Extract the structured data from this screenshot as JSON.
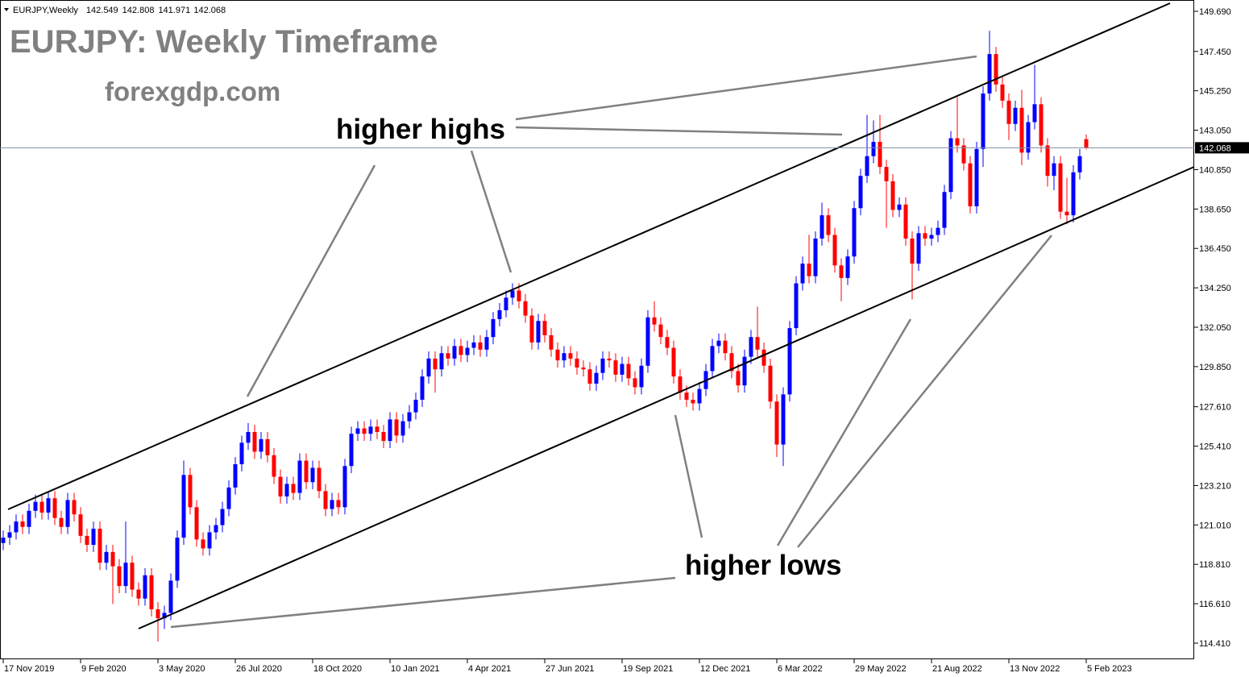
{
  "chart_data": {
    "type": "candlestick",
    "symbol": "EURJPY,Weekly",
    "title": "EURJPY: Weekly Timeframe",
    "subtitle": "forexgdp.com",
    "annotations": [
      "higher highs",
      "higher lows"
    ],
    "up_color": "#0000ff",
    "down_color": "#ff0000",
    "grid": false,
    "ylim": [
      113.51,
      150.32
    ],
    "yticks": [
      {
        "value": 149.69,
        "label": "149.690"
      },
      {
        "value": 147.45,
        "label": "147.450"
      },
      {
        "value": 145.25,
        "label": "145.250"
      },
      {
        "value": 143.05,
        "label": "143.050"
      },
      {
        "value": 140.85,
        "label": "140.850"
      },
      {
        "value": 138.65,
        "label": "138.650"
      },
      {
        "value": 136.45,
        "label": "136.450"
      },
      {
        "value": 134.25,
        "label": "134.250"
      },
      {
        "value": 132.05,
        "label": "132.050"
      },
      {
        "value": 129.85,
        "label": "129.850"
      },
      {
        "value": 127.61,
        "label": "127.610"
      },
      {
        "value": 125.41,
        "label": "125.410"
      },
      {
        "value": 123.21,
        "label": "123.210"
      },
      {
        "value": 121.01,
        "label": "121.010"
      },
      {
        "value": 118.81,
        "label": "118.810"
      },
      {
        "value": 116.61,
        "label": "116.610"
      },
      {
        "value": 114.41,
        "label": "114.410"
      }
    ],
    "categories": [
      "17 Nov 2019",
      null,
      null,
      null,
      null,
      null,
      null,
      null,
      null,
      null,
      null,
      null,
      "9 Feb 2020",
      null,
      null,
      null,
      null,
      null,
      null,
      null,
      null,
      null,
      null,
      null,
      "3 May 2020",
      null,
      null,
      null,
      null,
      null,
      null,
      null,
      null,
      null,
      null,
      null,
      "26 Jul 2020",
      null,
      null,
      null,
      null,
      null,
      null,
      null,
      null,
      null,
      null,
      null,
      "18 Oct 2020",
      null,
      null,
      null,
      null,
      null,
      null,
      null,
      null,
      null,
      null,
      null,
      "10 Jan 2021",
      null,
      null,
      null,
      null,
      null,
      null,
      null,
      null,
      null,
      null,
      null,
      "4 Apr 2021",
      null,
      null,
      null,
      null,
      null,
      null,
      null,
      null,
      null,
      null,
      null,
      "27 Jun 2021",
      null,
      null,
      null,
      null,
      null,
      null,
      null,
      null,
      null,
      null,
      null,
      "19 Sep 2021",
      null,
      null,
      null,
      null,
      null,
      null,
      null,
      null,
      null,
      null,
      null,
      "12 Dec 2021",
      null,
      null,
      null,
      null,
      null,
      null,
      null,
      null,
      null,
      null,
      null,
      "6 Mar 2022",
      null,
      null,
      null,
      null,
      null,
      null,
      null,
      null,
      null,
      null,
      null,
      "29 May 2022",
      null,
      null,
      null,
      null,
      null,
      null,
      null,
      null,
      null,
      null,
      null,
      "21 Aug 2022",
      null,
      null,
      null,
      null,
      null,
      null,
      null,
      null,
      null,
      null,
      null,
      "13 Nov 2022",
      null,
      null,
      null,
      null,
      null,
      null,
      null,
      null,
      null,
      null,
      null,
      "5 Feb 2023"
    ],
    "open": [
      120.0,
      120.3,
      120.6,
      121.2,
      120.9,
      121.8,
      122.3,
      121.7,
      122.5,
      121.4,
      120.9,
      122.4,
      121.6,
      120.4,
      119.9,
      120.8,
      118.9,
      119.5,
      118.7,
      117.6,
      118.9,
      117.4,
      116.9,
      118.2,
      116.3,
      115.8,
      116.1,
      117.9,
      120.3,
      123.8,
      122.0,
      120.2,
      119.7,
      120.6,
      121.0,
      121.9,
      123.1,
      124.4,
      125.6,
      126.2,
      125.1,
      125.8,
      124.9,
      123.7,
      122.6,
      123.3,
      122.8,
      124.6,
      123.4,
      124.2,
      122.9,
      121.9,
      122.4,
      122.0,
      124.3,
      126.1,
      126.4,
      126.1,
      126.5,
      126.2,
      125.7,
      126.9,
      126.0,
      126.8,
      127.3,
      128.0,
      129.3,
      130.3,
      129.7,
      130.6,
      130.3,
      131.0,
      130.5,
      130.9,
      131.2,
      130.8,
      131.5,
      132.5,
      133.0,
      133.7,
      134.1,
      133.5,
      132.7,
      131.2,
      132.4,
      131.6,
      130.8,
      130.2,
      130.6,
      130.3,
      129.8,
      129.7,
      128.9,
      129.5,
      130.3,
      130.2,
      129.4,
      130.0,
      129.2,
      128.7,
      129.9,
      132.6,
      132.2,
      131.5,
      130.9,
      129.3,
      128.4,
      128.0,
      127.8,
      128.6,
      129.6,
      131.0,
      131.3,
      130.6,
      129.6,
      128.8,
      130.4,
      131.5,
      130.8,
      129.9,
      127.9,
      125.5,
      128.3,
      132.0,
      134.5,
      135.6,
      134.9,
      137.0,
      138.3,
      137.2,
      135.5,
      134.8,
      136.0,
      138.7,
      140.5,
      141.6,
      142.4,
      141.0,
      140.2,
      138.6,
      138.9,
      137.0,
      135.6,
      137.3,
      137.0,
      137.2,
      137.6,
      139.6,
      142.6,
      142.2,
      141.2,
      138.8,
      142.0,
      145.1,
      147.3,
      145.6,
      144.7,
      143.4,
      144.3,
      141.8,
      143.5,
      144.5,
      142.2,
      140.5,
      141.2,
      138.5,
      138.3,
      140.7,
      142.549
    ],
    "high": [
      120.7,
      121.0,
      121.6,
      121.6,
      122.2,
      122.7,
      122.7,
      122.9,
      122.9,
      121.8,
      122.8,
      122.8,
      122.0,
      120.8,
      121.2,
      121.2,
      119.9,
      119.9,
      119.1,
      121.2,
      119.3,
      117.8,
      118.6,
      118.6,
      116.7,
      116.5,
      118.3,
      120.7,
      124.6,
      124.2,
      122.4,
      120.6,
      121.0,
      121.4,
      122.3,
      123.5,
      124.8,
      126.0,
      126.7,
      126.6,
      126.2,
      126.2,
      125.3,
      124.1,
      123.7,
      123.7,
      125.0,
      125.0,
      124.6,
      124.6,
      123.3,
      122.8,
      122.8,
      124.7,
      126.5,
      126.8,
      126.8,
      126.9,
      126.9,
      126.6,
      127.3,
      127.3,
      127.2,
      127.7,
      128.4,
      129.7,
      130.7,
      130.7,
      131.0,
      131.0,
      131.4,
      131.4,
      131.3,
      131.6,
      131.6,
      131.9,
      132.9,
      133.4,
      134.1,
      134.5,
      134.5,
      133.9,
      133.1,
      132.8,
      132.8,
      132.0,
      131.2,
      131.0,
      131.0,
      130.7,
      130.2,
      130.1,
      129.9,
      130.7,
      130.7,
      130.6,
      130.4,
      130.4,
      129.6,
      130.3,
      133.0,
      133.5,
      132.6,
      131.9,
      131.3,
      129.7,
      128.8,
      128.4,
      129.0,
      130.0,
      131.4,
      131.7,
      131.7,
      131.0,
      130.0,
      130.8,
      131.9,
      133.2,
      131.2,
      130.3,
      128.3,
      128.7,
      132.4,
      134.9,
      136.0,
      137.2,
      137.4,
      139.0,
      138.7,
      137.6,
      135.9,
      136.4,
      139.1,
      140.9,
      143.9,
      143.6,
      143.9,
      141.4,
      140.6,
      139.3,
      139.3,
      137.4,
      137.7,
      137.7,
      137.6,
      138.0,
      140.0,
      143.0,
      144.9,
      142.6,
      141.6,
      142.4,
      145.5,
      148.6,
      147.7,
      146.0,
      145.1,
      144.7,
      145.3,
      143.9,
      146.7,
      144.9,
      142.6,
      141.6,
      141.6,
      140.4,
      141.1,
      142.0,
      142.808
    ],
    "low": [
      119.6,
      119.9,
      120.2,
      120.5,
      120.5,
      121.4,
      121.3,
      121.3,
      121.0,
      120.5,
      120.5,
      121.2,
      120.0,
      119.5,
      119.5,
      118.5,
      118.5,
      116.6,
      117.2,
      117.2,
      117.0,
      116.5,
      116.5,
      115.9,
      114.5,
      115.2,
      115.7,
      117.5,
      119.9,
      121.6,
      119.8,
      119.3,
      119.3,
      120.2,
      120.6,
      121.5,
      122.7,
      124.0,
      125.2,
      124.7,
      124.7,
      124.5,
      123.3,
      122.2,
      122.2,
      122.4,
      122.4,
      123.0,
      123.0,
      122.5,
      121.5,
      121.5,
      121.6,
      121.6,
      123.9,
      125.7,
      125.7,
      125.7,
      125.8,
      125.3,
      125.3,
      125.6,
      125.6,
      126.4,
      126.9,
      127.6,
      128.9,
      128.4,
      129.3,
      129.9,
      129.9,
      130.1,
      130.1,
      130.5,
      130.4,
      130.4,
      131.1,
      132.1,
      132.6,
      133.3,
      133.1,
      132.3,
      130.8,
      130.8,
      131.2,
      130.4,
      129.8,
      129.8,
      129.9,
      129.4,
      129.3,
      128.5,
      128.5,
      129.1,
      129.8,
      129.0,
      129.0,
      128.8,
      128.3,
      128.3,
      129.5,
      131.8,
      131.1,
      130.5,
      128.9,
      128.0,
      127.6,
      127.4,
      127.4,
      128.2,
      129.2,
      130.6,
      130.2,
      129.2,
      128.4,
      128.4,
      130.0,
      130.4,
      129.5,
      127.5,
      124.8,
      124.3,
      127.9,
      131.6,
      134.1,
      134.5,
      134.5,
      136.6,
      136.8,
      135.1,
      133.5,
      134.4,
      135.6,
      138.3,
      140.1,
      141.2,
      140.6,
      137.6,
      138.2,
      138.2,
      136.6,
      133.6,
      135.2,
      136.6,
      136.6,
      136.8,
      137.2,
      139.2,
      141.8,
      140.8,
      138.4,
      138.4,
      141.0,
      144.7,
      145.2,
      144.3,
      142.5,
      143.0,
      141.1,
      141.4,
      143.1,
      141.8,
      139.9,
      139.7,
      138.1,
      137.8,
      137.9,
      140.3,
      141.971
    ],
    "close": [
      120.3,
      120.6,
      121.2,
      120.9,
      121.8,
      122.3,
      121.7,
      122.5,
      121.4,
      120.9,
      122.4,
      121.6,
      120.4,
      119.9,
      120.8,
      118.9,
      119.5,
      118.7,
      117.6,
      118.9,
      117.4,
      116.9,
      118.2,
      116.3,
      115.8,
      116.1,
      117.9,
      120.3,
      123.8,
      122.0,
      120.2,
      119.7,
      120.6,
      121.0,
      121.9,
      123.1,
      124.4,
      125.6,
      126.2,
      125.1,
      125.8,
      124.9,
      123.7,
      122.6,
      123.3,
      122.8,
      124.6,
      123.4,
      124.2,
      122.9,
      121.9,
      122.4,
      122.0,
      124.3,
      126.1,
      126.4,
      126.1,
      126.5,
      126.2,
      125.7,
      126.9,
      126.0,
      126.8,
      127.3,
      128.0,
      129.3,
      130.3,
      129.7,
      130.6,
      130.3,
      131.0,
      130.5,
      130.9,
      131.2,
      130.8,
      131.5,
      132.5,
      133.0,
      133.7,
      134.1,
      133.5,
      132.7,
      131.2,
      132.4,
      131.6,
      130.8,
      130.2,
      130.6,
      130.3,
      129.8,
      129.7,
      128.9,
      129.5,
      130.3,
      130.2,
      129.4,
      130.0,
      129.2,
      128.7,
      129.9,
      132.6,
      132.2,
      131.5,
      130.9,
      129.3,
      128.4,
      128.0,
      127.8,
      128.6,
      129.6,
      131.0,
      131.3,
      130.6,
      129.6,
      128.8,
      130.4,
      131.5,
      130.8,
      129.9,
      127.9,
      125.5,
      128.3,
      132.0,
      134.5,
      135.6,
      134.9,
      137.0,
      138.3,
      137.2,
      135.5,
      134.8,
      136.0,
      138.7,
      140.5,
      141.6,
      142.4,
      141.0,
      140.2,
      138.6,
      138.9,
      137.0,
      135.6,
      137.3,
      137.0,
      137.2,
      137.6,
      139.6,
      142.6,
      142.2,
      141.2,
      138.8,
      142.0,
      145.1,
      147.3,
      145.6,
      144.7,
      143.4,
      144.3,
      141.8,
      143.5,
      144.5,
      142.2,
      140.5,
      141.2,
      138.5,
      138.3,
      140.7,
      141.6,
      142.068
    ]
  }
}
